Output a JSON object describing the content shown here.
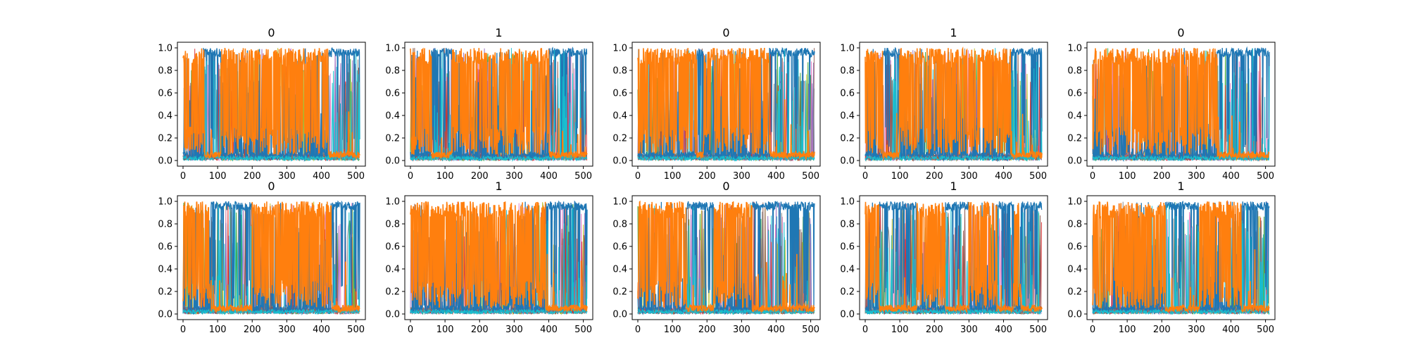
{
  "figure": {
    "palette": [
      "#1f77b4",
      "#ff7f0e",
      "#2ca02c",
      "#d62728",
      "#9467bd",
      "#8c564b",
      "#e377c2",
      "#7f7f7f",
      "#bcbd22",
      "#17becf"
    ],
    "foreground_series_color": "#ff7f0e",
    "background_series_color": "#1f77b4"
  },
  "chart_data": [
    {
      "type": "line",
      "title": "0",
      "xlim": [
        0,
        511
      ],
      "ylim": [
        0.0,
        1.0
      ],
      "xticks": [
        "0",
        "100",
        "200",
        "300",
        "400",
        "500"
      ],
      "yticks": [
        "0.0",
        "0.2",
        "0.4",
        "0.6",
        "0.8",
        "1.0"
      ],
      "orange_high_segments": [
        [
          0,
          60
        ],
        [
          110,
          420
        ]
      ],
      "seed": 11
    },
    {
      "type": "line",
      "title": "1",
      "xlim": [
        0,
        511
      ],
      "ylim": [
        0.0,
        1.0
      ],
      "xticks": [
        "0",
        "100",
        "200",
        "300",
        "400",
        "500"
      ],
      "yticks": [
        "0.0",
        "0.2",
        "0.4",
        "0.6",
        "0.8",
        "1.0"
      ],
      "orange_high_segments": [
        [
          0,
          60
        ],
        [
          120,
          400
        ]
      ],
      "seed": 23
    },
    {
      "type": "line",
      "title": "0",
      "xlim": [
        0,
        511
      ],
      "ylim": [
        0.0,
        1.0
      ],
      "xticks": [
        "0",
        "100",
        "200",
        "300",
        "400",
        "500"
      ],
      "yticks": [
        "0.0",
        "0.2",
        "0.4",
        "0.6",
        "0.8",
        "1.0"
      ],
      "orange_high_segments": [
        [
          0,
          170
        ],
        [
          190,
          380
        ]
      ],
      "seed": 37
    },
    {
      "type": "line",
      "title": "1",
      "xlim": [
        0,
        511
      ],
      "ylim": [
        0.0,
        1.0
      ],
      "xticks": [
        "0",
        "100",
        "200",
        "300",
        "400",
        "500"
      ],
      "yticks": [
        "0.0",
        "0.2",
        "0.4",
        "0.6",
        "0.8",
        "1.0"
      ],
      "orange_high_segments": [
        [
          0,
          50
        ],
        [
          100,
          420
        ]
      ],
      "seed": 41
    },
    {
      "type": "line",
      "title": "0",
      "xlim": [
        0,
        511
      ],
      "ylim": [
        0.0,
        1.0
      ],
      "xticks": [
        "0",
        "100",
        "200",
        "300",
        "400",
        "500"
      ],
      "yticks": [
        "0.0",
        "0.2",
        "0.4",
        "0.6",
        "0.8",
        "1.0"
      ],
      "orange_high_segments": [
        [
          0,
          360
        ]
      ],
      "seed": 53
    },
    {
      "type": "line",
      "title": "0",
      "xlim": [
        0,
        511
      ],
      "ylim": [
        0.0,
        1.0
      ],
      "xticks": [
        "0",
        "100",
        "200",
        "300",
        "400",
        "500"
      ],
      "yticks": [
        "0.0",
        "0.2",
        "0.4",
        "0.6",
        "0.8",
        "1.0"
      ],
      "orange_high_segments": [
        [
          0,
          80
        ],
        [
          200,
          430
        ]
      ],
      "seed": 67
    },
    {
      "type": "line",
      "title": "1",
      "xlim": [
        0,
        511
      ],
      "ylim": [
        0.0,
        1.0
      ],
      "xticks": [
        "0",
        "100",
        "200",
        "300",
        "400",
        "500"
      ],
      "yticks": [
        "0.0",
        "0.2",
        "0.4",
        "0.6",
        "0.8",
        "1.0"
      ],
      "orange_high_segments": [
        [
          0,
          390
        ]
      ],
      "seed": 71
    },
    {
      "type": "line",
      "title": "0",
      "xlim": [
        0,
        511
      ],
      "ylim": [
        0.0,
        1.0
      ],
      "xticks": [
        "0",
        "100",
        "200",
        "300",
        "400",
        "500"
      ],
      "yticks": [
        "0.0",
        "0.2",
        "0.4",
        "0.6",
        "0.8",
        "1.0"
      ],
      "orange_high_segments": [
        [
          0,
          140
        ],
        [
          220,
          330
        ]
      ],
      "seed": 83
    },
    {
      "type": "line",
      "title": "1",
      "xlim": [
        0,
        511
      ],
      "ylim": [
        0.0,
        1.0
      ],
      "xticks": [
        "0",
        "100",
        "200",
        "300",
        "400",
        "500"
      ],
      "yticks": [
        "0.0",
        "0.2",
        "0.4",
        "0.6",
        "0.8",
        "1.0"
      ],
      "orange_high_segments": [
        [
          0,
          40
        ],
        [
          150,
          230
        ],
        [
          300,
          380
        ],
        [
          430,
          450
        ]
      ],
      "seed": 97
    },
    {
      "type": "line",
      "title": "1",
      "xlim": [
        0,
        511
      ],
      "ylim": [
        0.0,
        1.0
      ],
      "xticks": [
        "0",
        "100",
        "200",
        "300",
        "400",
        "500"
      ],
      "yticks": [
        "0.0",
        "0.2",
        "0.4",
        "0.6",
        "0.8",
        "1.0"
      ],
      "orange_high_segments": [
        [
          0,
          210
        ],
        [
          310,
          430
        ]
      ],
      "seed": 101
    }
  ]
}
